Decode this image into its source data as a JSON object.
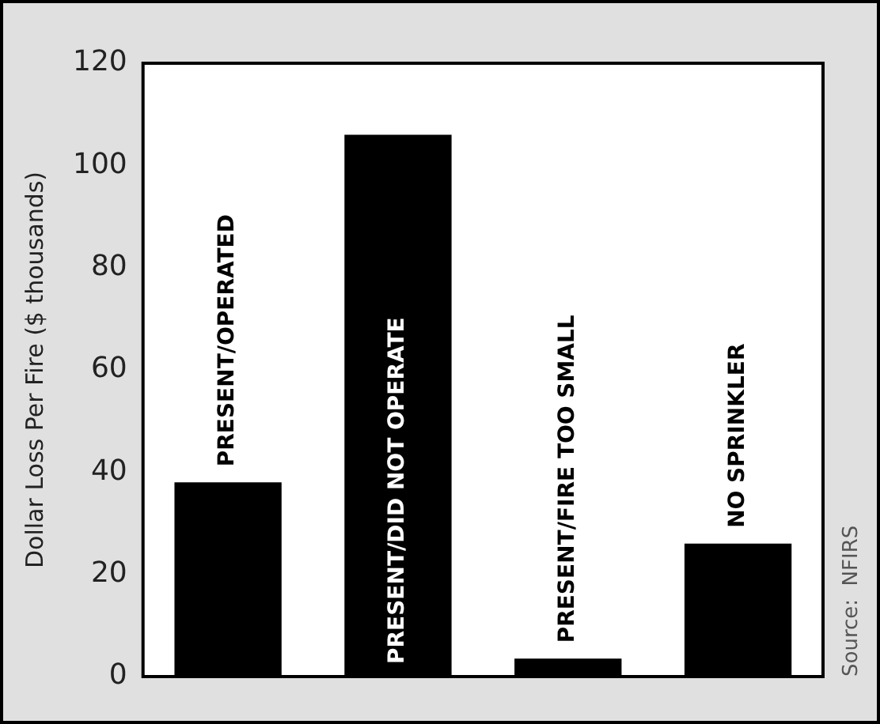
{
  "chart_data": {
    "type": "bar",
    "ylabel": "Dollar Loss Per Fire ($ thousands)",
    "categories": [
      "PRESENT/OPERATED",
      "PRESENT/DID NOT OPERATE",
      "PRESENT/FIRE TOO SMALL",
      "NO SPRINKLER"
    ],
    "values": [
      38,
      106,
      3.5,
      26
    ],
    "color": "#000000",
    "ylim": [
      0,
      120
    ],
    "yticks": [
      0,
      20,
      40,
      60,
      80,
      100,
      120
    ],
    "grid": false,
    "annotations": [
      "Source:  NFIRS"
    ]
  }
}
